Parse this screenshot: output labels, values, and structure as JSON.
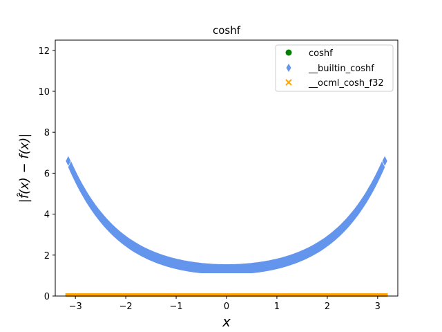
{
  "chart_data": {
    "type": "scatter",
    "title": "coshf",
    "xlabel": "x",
    "ylabel": "|f̂(x) − f(x)|",
    "xlim": [
      -3.4,
      3.4
    ],
    "ylim": [
      0,
      12.5
    ],
    "x_ticks": [
      -3,
      -2,
      -1,
      0,
      1,
      2,
      3
    ],
    "x_tick_labels": [
      "−3",
      "−2",
      "−1",
      "0",
      "1",
      "2",
      "3"
    ],
    "y_ticks": [
      0,
      2,
      4,
      6,
      8,
      10,
      12
    ],
    "y_tick_labels": [
      "0",
      "2",
      "4",
      "6",
      "8",
      "10",
      "12"
    ],
    "grid": false,
    "legend_position": "top-right",
    "x_range_sampled": [
      -3.14159,
      3.14159
    ],
    "series": [
      {
        "name": "coshf",
        "marker": "circle",
        "color": "#008000",
        "value_model": "constant",
        "value": 0
      },
      {
        "name": "__builtin_coshf",
        "marker": "diamond",
        "color": "#6495ed",
        "value_model": "0.5*cosh(x)+0.8",
        "band_low": 1.15,
        "band_high": 1.55
      },
      {
        "name": "__ocml_cosh_f32",
        "marker": "x",
        "color": "#ffa500",
        "value_model": "constant",
        "value": 0
      }
    ]
  }
}
